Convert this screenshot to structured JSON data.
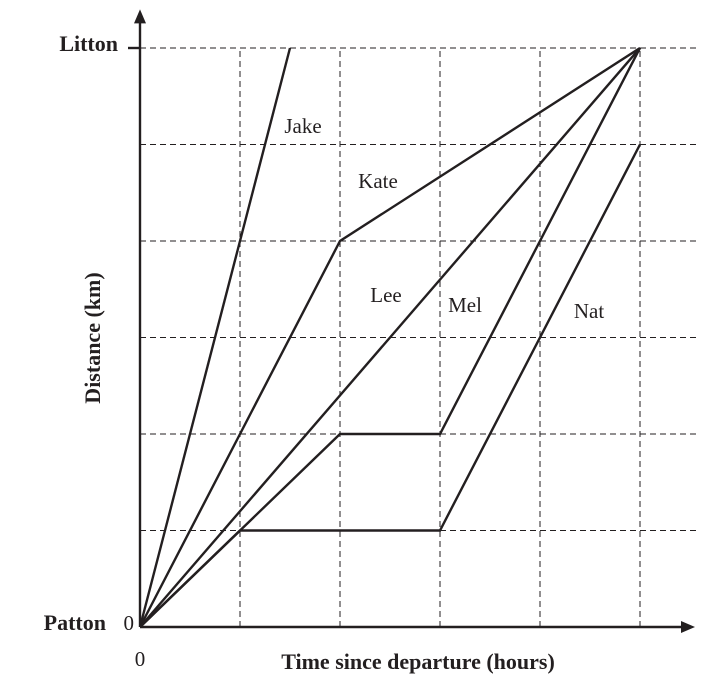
{
  "chart_data": {
    "type": "line",
    "xlabel": "Time since departure (hours)",
    "ylabel": "Distance (km)",
    "xlim": [
      0,
      5.55
    ],
    "ylim": [
      0,
      6.4
    ],
    "xticks": [
      0
    ],
    "yticks": [
      0
    ],
    "y_places": [
      {
        "value": 0,
        "label": "Patton"
      },
      {
        "value": 6,
        "label": "Litton"
      }
    ],
    "xgrid": [
      1,
      2,
      3,
      4,
      5
    ],
    "ygrid": [
      1,
      2,
      3,
      4,
      5,
      6
    ],
    "series": [
      {
        "name": "Jake",
        "color": "#231f20",
        "x": [
          0,
          1.5
        ],
        "values": [
          0,
          6
        ]
      },
      {
        "name": "Kate",
        "color": "#231f20",
        "x": [
          0,
          2,
          5
        ],
        "values": [
          0,
          4,
          6
        ]
      },
      {
        "name": "Lee",
        "color": "#231f20",
        "x": [
          0,
          5
        ],
        "values": [
          0,
          6
        ]
      },
      {
        "name": "Mel",
        "color": "#231f20",
        "x": [
          0,
          2,
          3,
          5
        ],
        "values": [
          0,
          2,
          2,
          6
        ]
      },
      {
        "name": "Nat",
        "color": "#231f20",
        "x": [
          0,
          1,
          3,
          5
        ],
        "values": [
          0,
          1,
          1,
          5
        ]
      }
    ]
  }
}
